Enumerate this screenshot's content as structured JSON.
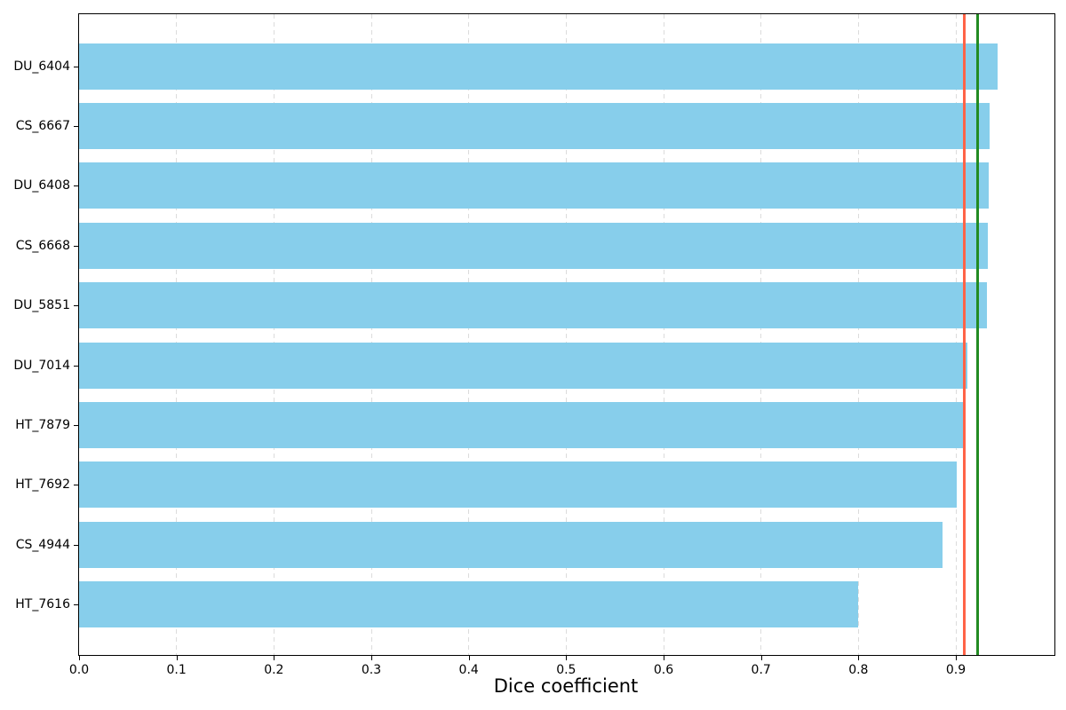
{
  "chart_data": {
    "type": "bar",
    "orientation": "horizontal",
    "title": "",
    "xlabel": "Dice coefficient",
    "ylabel": "",
    "categories": [
      "DU_6404",
      "CS_6667",
      "DU_6408",
      "CS_6668",
      "DU_5851",
      "DU_7014",
      "HT_7879",
      "HT_7692",
      "CS_4944",
      "HT_7616"
    ],
    "values": [
      0.943,
      0.935,
      0.934,
      0.933,
      0.932,
      0.912,
      0.907,
      0.901,
      0.886,
      0.8
    ],
    "xlim": [
      0.0,
      1.0012
    ],
    "xticks": [
      0.0,
      0.1,
      0.2,
      0.3,
      0.4,
      0.5,
      0.6,
      0.7,
      0.8,
      0.9
    ],
    "grid": "vertical-dashed",
    "legend": "none",
    "bar_color": "#87CEEB",
    "grid_color": "#dcdcdc",
    "spine_color": "#000000",
    "reference_lines": [
      {
        "name": "reference-line-red",
        "value": 0.909,
        "color": "#FF6347"
      },
      {
        "name": "reference-line-green",
        "value": 0.922,
        "color": "#228B22"
      }
    ]
  }
}
